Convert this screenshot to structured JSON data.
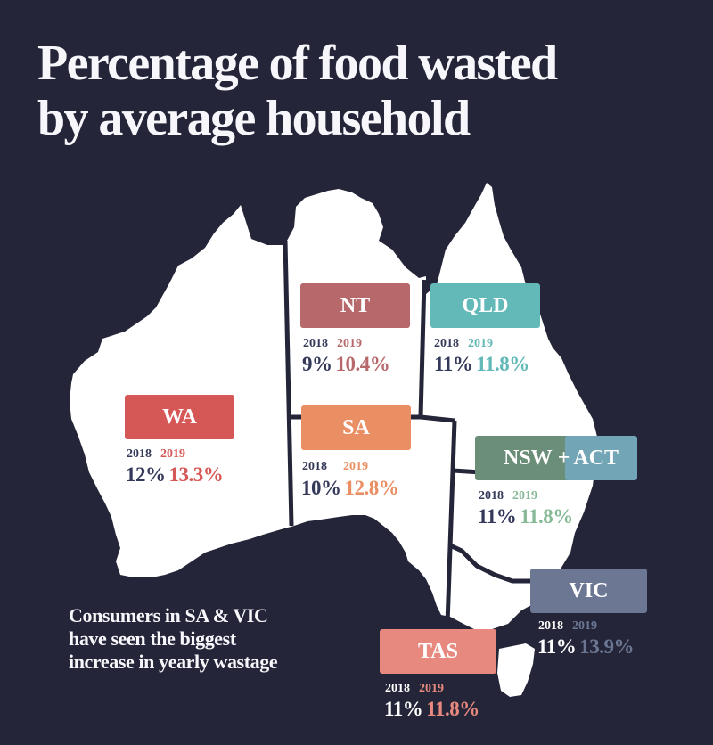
{
  "title_line1": "Percentage of food wasted",
  "title_line2": "by average household",
  "note": {
    "line1": "Consumers in SA & VIC",
    "line2": "have seen the biggest",
    "line3": "increase in yearly wastage"
  },
  "colors": {
    "background": "#242538",
    "land": "#ffffff",
    "border": "#242538",
    "text_2018": "#34395a"
  },
  "states": {
    "nt": {
      "name": "NT",
      "color": "#b7686a",
      "year_a": "2018",
      "year_b": "2019",
      "value_a": "9%",
      "value_b": "10.4%"
    },
    "qld": {
      "name": "QLD",
      "color": "#62b9b8",
      "year_a": "2018",
      "year_b": "2019",
      "value_a": "11%",
      "value_b": "11.8%"
    },
    "wa": {
      "name": "WA",
      "color": "#d55856",
      "year_a": "2018",
      "year_b": "2019",
      "value_a": "12%",
      "value_b": "13.3%"
    },
    "sa": {
      "name": "SA",
      "color": "#ea8f63",
      "year_a": "2018",
      "year_b": "2019",
      "value_a": "10%",
      "value_b": "12.8%"
    },
    "nsw": {
      "name": "NSW",
      "plus": "+",
      "act_name": "ACT",
      "color": "#6a8e78",
      "act_color": "#72a6b7",
      "value_color": "#86b996",
      "year_a": "2018",
      "year_b": "2019",
      "value_a": "11%",
      "value_b": "11.8%"
    },
    "vic": {
      "name": "VIC",
      "color": "#6c7893",
      "value_color": "#6c7893",
      "year_a": "2018",
      "year_b": "2019",
      "value_a": "11%",
      "value_b": "13.9%"
    },
    "tas": {
      "name": "TAS",
      "color": "#e8897f",
      "year_a": "2018",
      "year_b": "2019",
      "value_a": "11%",
      "value_b": "11.8%"
    }
  }
}
